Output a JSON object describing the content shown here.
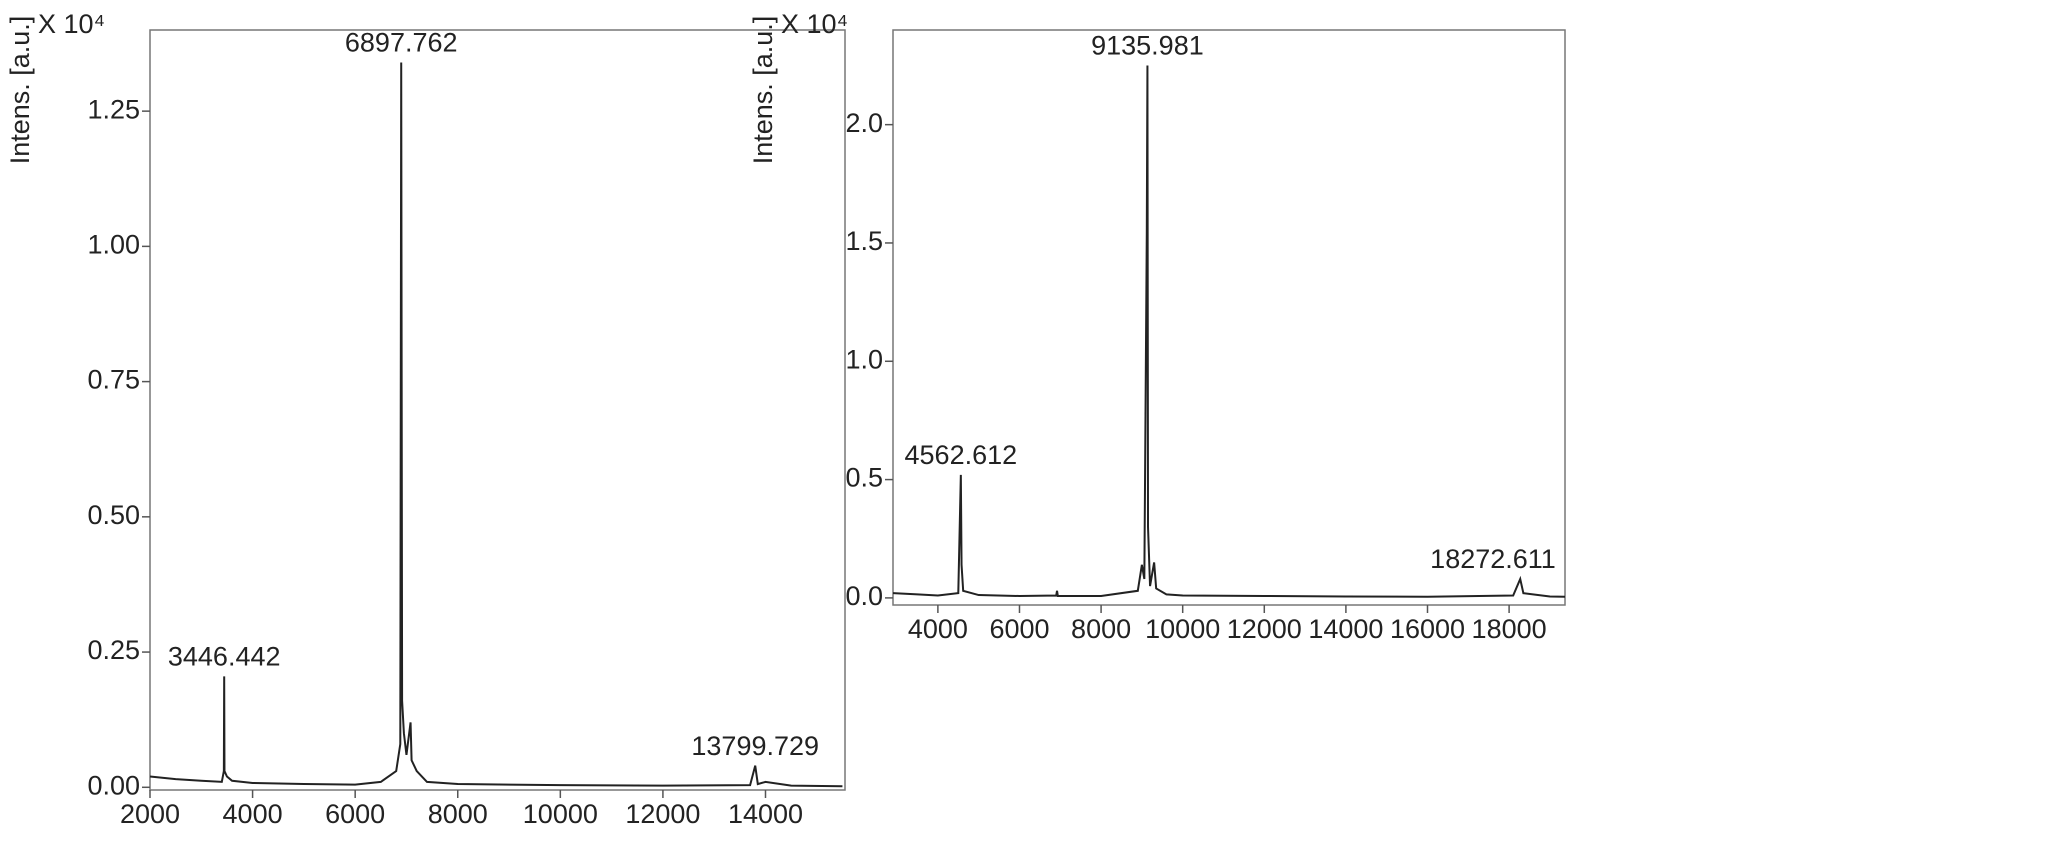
{
  "chart_data": [
    {
      "type": "line",
      "y_label": "Intens. [a.u.]",
      "y_multiplier": "X 10⁴",
      "x": [
        2000,
        2500,
        3000,
        3400,
        3440,
        3446.442,
        3452,
        3500,
        3600,
        4000,
        5000,
        6000,
        6500,
        6800,
        6880,
        6897.762,
        6915,
        6950,
        7000,
        7080,
        7100,
        7200,
        7400,
        8000,
        10000,
        12000,
        13700,
        13799.729,
        13850,
        14000,
        14500,
        15500
      ],
      "series": [
        {
          "color": "#222222",
          "values": [
            0.02,
            0.015,
            0.012,
            0.01,
            0.03,
            0.205,
            0.03,
            0.02,
            0.012,
            0.008,
            0.006,
            0.005,
            0.01,
            0.03,
            0.08,
            1.34,
            0.16,
            0.1,
            0.06,
            0.12,
            0.05,
            0.03,
            0.01,
            0.006,
            0.004,
            0.003,
            0.004,
            0.04,
            0.006,
            0.01,
            0.003,
            0.002
          ]
        }
      ],
      "annotations": [
        {
          "text": "3446.442",
          "x": 3446.442,
          "y": 0.205
        },
        {
          "text": "6897.762",
          "x": 6897.762,
          "y": 1.34
        },
        {
          "text": "13799.729",
          "x": 13799.729,
          "y": 0.04
        }
      ],
      "xlim": [
        2000,
        15550
      ],
      "ylim": [
        -0.005,
        1.4
      ],
      "xticks": [
        2000,
        4000,
        6000,
        8000,
        10000,
        12000,
        14000
      ],
      "yticks": [
        {
          "value": 0,
          "label": "0.00"
        },
        0.25,
        {
          "value": 0.5,
          "label": "0.50"
        },
        0.75,
        {
          "value": 1,
          "label": "1.00"
        },
        1.25
      ]
    },
    {
      "type": "line",
      "y_label": "Intens. [a.u.]",
      "y_multiplier": "X 10⁴",
      "x": [
        2900,
        3500,
        4000,
        4500,
        4562.612,
        4580,
        4620,
        5000,
        6000,
        6900,
        6920,
        6940,
        8000,
        8900,
        9000,
        9060,
        9120,
        9135.981,
        9150,
        9200,
        9300,
        9350,
        9600,
        10000,
        12000,
        14000,
        16000,
        18100,
        18272.611,
        18350,
        19000,
        19370
      ],
      "series": [
        {
          "color": "#222222",
          "values": [
            0.02,
            0.015,
            0.01,
            0.02,
            0.52,
            0.14,
            0.03,
            0.012,
            0.008,
            0.01,
            0.03,
            0.008,
            0.008,
            0.03,
            0.14,
            0.08,
            1.54,
            2.25,
            0.3,
            0.05,
            0.15,
            0.04,
            0.015,
            0.01,
            0.008,
            0.006,
            0.005,
            0.01,
            0.08,
            0.02,
            0.006,
            0.005
          ]
        }
      ],
      "annotations": [
        {
          "text": "4562.612",
          "x": 4562.612,
          "y": 0.52
        },
        {
          "text": "9135.981",
          "x": 9135.981,
          "y": 2.25
        },
        {
          "text": "18272.611",
          "x": 18272.611,
          "y": 0.08
        }
      ],
      "xlim": [
        2900,
        19370
      ],
      "ylim": [
        -0.03,
        2.4
      ],
      "xticks": [
        4000,
        6000,
        8000,
        10000,
        12000,
        14000,
        16000,
        18000
      ],
      "yticks": [
        {
          "value": 0,
          "label": "0.0"
        },
        0.5,
        {
          "value": 1,
          "label": "1.0"
        },
        1.5,
        {
          "value": 2,
          "label": "2.0"
        }
      ]
    }
  ]
}
